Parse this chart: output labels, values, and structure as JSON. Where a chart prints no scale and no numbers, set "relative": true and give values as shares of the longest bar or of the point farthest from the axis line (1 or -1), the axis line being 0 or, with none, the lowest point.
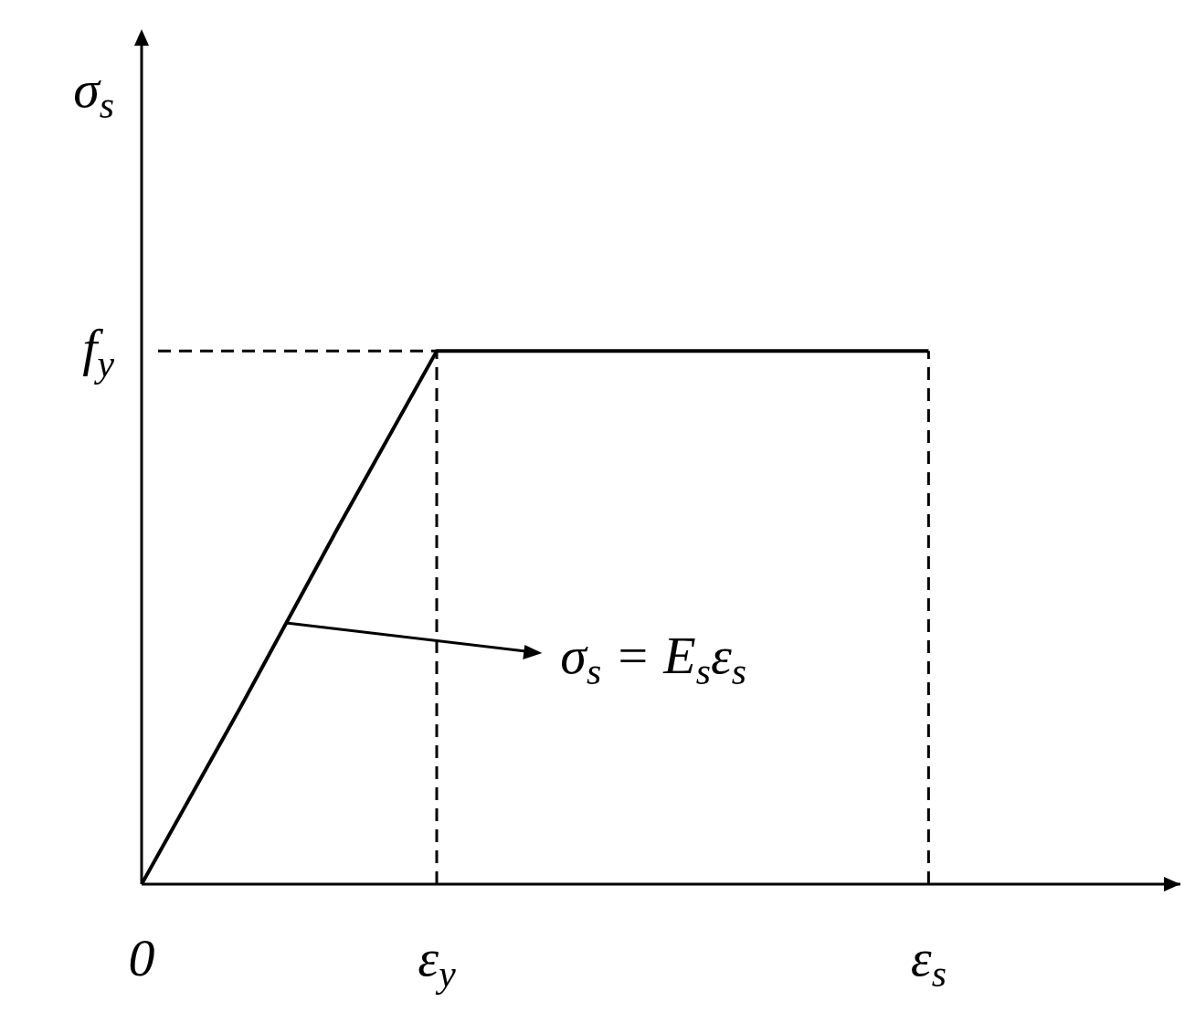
{
  "chart_data": {
    "type": "line",
    "relative": true,
    "categories": [
      "0",
      null,
      null,
      "ε$_{y}$",
      null,
      null,
      null,
      null,
      "ε$_{s}$"
    ],
    "values": [
      0,
      0.33,
      0.67,
      1,
      1,
      1,
      1,
      1,
      1
    ],
    "color": "#000000",
    "marker": "none",
    "line_style": "solid",
    "ylabel": "σ$_{s}$",
    "ref_lines": [
      {
        "axis": "y",
        "value": 1,
        "label": "f$_{y}$",
        "line_style": "dashed"
      },
      {
        "axis": "x",
        "value": "ε$_{y}$",
        "line_style": "dashed"
      },
      {
        "axis": "x",
        "value": "ε$_{s}$",
        "line_style": "dashed"
      }
    ],
    "annotations": [
      "σ$_{s}$ = E$_{s}$ε$_{s}$"
    ],
    "legend": false
  }
}
